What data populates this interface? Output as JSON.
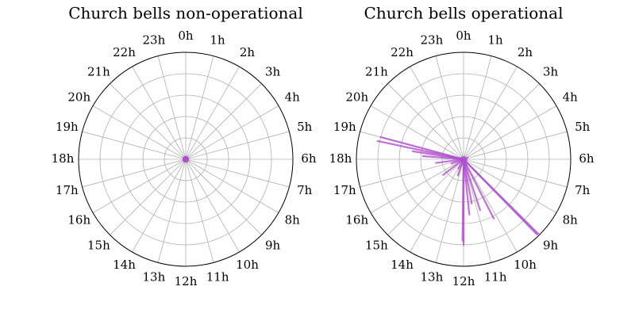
{
  "chart_data": [
    {
      "type": "polar",
      "title": "Church bells non-operational",
      "theta_ticks": [
        "0h",
        "1h",
        "2h",
        "3h",
        "4h",
        "5h",
        "6h",
        "7h",
        "8h",
        "9h",
        "10h",
        "11h",
        "12h",
        "13h",
        "14h",
        "15h",
        "16h",
        "17h",
        "18h",
        "19h",
        "20h",
        "21h",
        "22h",
        "23h"
      ],
      "r_max": 5,
      "grid": true,
      "series_color": "#b04fcf",
      "segments": [
        {
          "hour": 0.0,
          "r": 0.12
        },
        {
          "hour": 1.0,
          "r": 0.1
        },
        {
          "hour": 2.0,
          "r": 0.12
        },
        {
          "hour": 3.0,
          "r": 0.1
        },
        {
          "hour": 4.0,
          "r": 0.12
        },
        {
          "hour": 5.0,
          "r": 0.1
        },
        {
          "hour": 6.0,
          "r": 0.12
        },
        {
          "hour": 7.0,
          "r": 0.1
        },
        {
          "hour": 8.0,
          "r": 0.12
        },
        {
          "hour": 9.0,
          "r": 0.1
        },
        {
          "hour": 10.0,
          "r": 0.12
        },
        {
          "hour": 11.0,
          "r": 0.1
        },
        {
          "hour": 12.0,
          "r": 0.12
        },
        {
          "hour": 13.0,
          "r": 0.1
        },
        {
          "hour": 14.0,
          "r": 0.12
        },
        {
          "hour": 15.0,
          "r": 0.1
        },
        {
          "hour": 16.0,
          "r": 0.12
        },
        {
          "hour": 17.0,
          "r": 0.1
        },
        {
          "hour": 18.0,
          "r": 0.12
        },
        {
          "hour": 19.0,
          "r": 0.1
        },
        {
          "hour": 20.0,
          "r": 0.12
        },
        {
          "hour": 21.0,
          "r": 0.1
        },
        {
          "hour": 22.0,
          "r": 0.12
        },
        {
          "hour": 23.0,
          "r": 0.1
        }
      ]
    },
    {
      "type": "polar",
      "title": "Church bells operational",
      "theta_ticks": [
        "0h",
        "1h",
        "2h",
        "3h",
        "4h",
        "5h",
        "6h",
        "7h",
        "8h",
        "9h",
        "10h",
        "11h",
        "12h",
        "13h",
        "14h",
        "15h",
        "16h",
        "17h",
        "18h",
        "19h",
        "20h",
        "21h",
        "22h",
        "23h"
      ],
      "r_max": 5,
      "grid": true,
      "series_color": "#b04fcf",
      "segments": [
        {
          "hour": 9.0,
          "r": 5.0
        },
        {
          "hour": 9.05,
          "r": 4.9
        },
        {
          "hour": 10.2,
          "r": 3.1
        },
        {
          "hour": 10.8,
          "r": 2.5
        },
        {
          "hour": 11.3,
          "r": 2.1
        },
        {
          "hour": 11.6,
          "r": 2.6
        },
        {
          "hour": 12.0,
          "r": 4.0
        },
        {
          "hour": 12.05,
          "r": 3.8
        },
        {
          "hour": 13.3,
          "r": 0.8
        },
        {
          "hour": 14.0,
          "r": 0.5
        },
        {
          "hour": 15.5,
          "r": 1.2
        },
        {
          "hour": 16.7,
          "r": 0.6
        },
        {
          "hour": 17.5,
          "r": 1.3
        },
        {
          "hour": 18.3,
          "r": 1.9
        },
        {
          "hour": 18.6,
          "r": 2.4
        },
        {
          "hour": 18.8,
          "r": 4.1
        },
        {
          "hour": 19.0,
          "r": 4.0
        },
        {
          "hour": 4.5,
          "r": 0.2
        },
        {
          "hour": 6.5,
          "r": 0.15
        }
      ]
    }
  ]
}
